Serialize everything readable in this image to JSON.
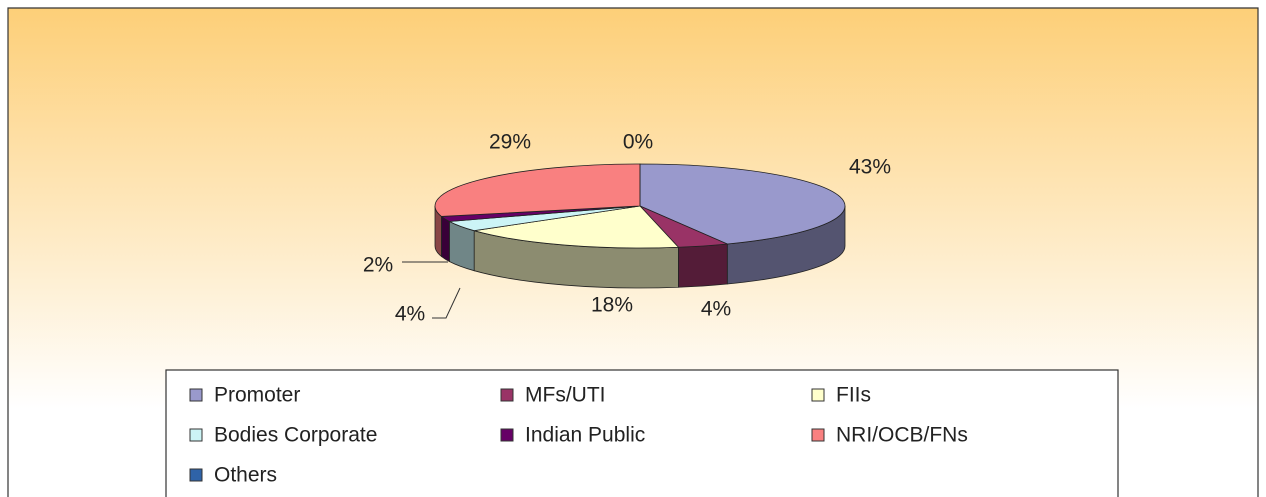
{
  "chart_data": {
    "type": "pie3d",
    "categories": [
      "Promoter",
      "MFs/UTI",
      "FIIs",
      "Bodies Corporate",
      "Indian Public",
      "NRI/OCB/FNs",
      "Others"
    ],
    "values": [
      43,
      4,
      18,
      4,
      2,
      29,
      0
    ],
    "value_labels": [
      "43%",
      "4%",
      "18%",
      "4%",
      "2%",
      "29%",
      "0%"
    ],
    "colors": [
      "#9999cc",
      "#993366",
      "#ffffcc",
      "#ccf4f6",
      "#660066",
      "#f98080",
      "#2f63a8"
    ],
    "legend": "bottom"
  }
}
